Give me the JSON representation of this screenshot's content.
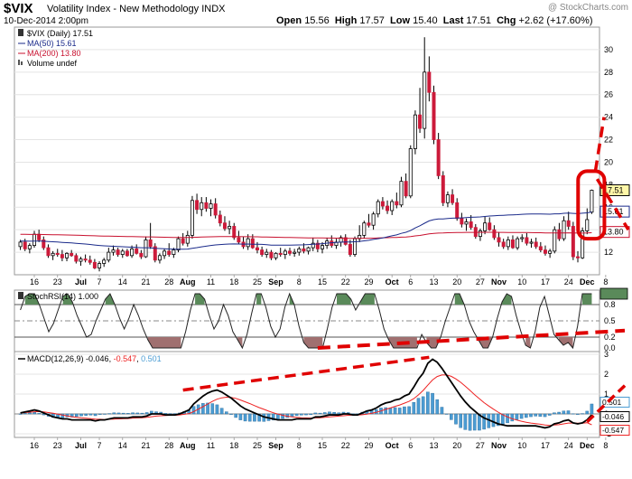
{
  "header": {
    "symbol": "$VIX",
    "description": "Volatility Index - New Methodology",
    "exchange": "INDX",
    "datestamp": "10-Dec-2014 2:00pm",
    "watermark": "@ StockCharts.com",
    "open_label": "Open",
    "open": "15.56",
    "high_label": "High",
    "high": "17.57",
    "low_label": "Low",
    "low": "15.40",
    "last_label": "Last",
    "last": "17.51",
    "chg_label": "Chg",
    "chg": "+2.62 (+17.60%)"
  },
  "legend": {
    "price": "$VIX (Daily) 17.51",
    "ma50": "MA(50) 15.61",
    "ma200": "MA(200) 13.80",
    "volume": "Volume undef",
    "stochrsi": "StochRSI(14) 1.000",
    "macd_prefix": "MACD(12,26,9)",
    "macd_val": "-0.046",
    "signal_val": "-0.547",
    "hist_val": "0.501"
  },
  "colors": {
    "up": "#ffffff",
    "down": "#cc1a3a",
    "ma50": "#1a2a8a",
    "ma200": "#c8102e",
    "macd_line": "#000000",
    "signal_line": "#ee2222",
    "hist": "#4b9cd3",
    "stoch_fill_high": "#5a8a5a",
    "stoch_fill_low": "#a07070",
    "annotation": "#e00000"
  },
  "chart_data": [
    {
      "type": "candlestick",
      "name": "price",
      "ylim": [
        10,
        32
      ],
      "yticks": [
        12,
        14,
        16,
        18,
        20,
        22,
        24,
        26,
        28,
        30
      ],
      "ma50_last": "15.61",
      "ma200_last": "13.80",
      "price_last": "17.51",
      "ohlc": [
        [
          12.5,
          13.1,
          12.2,
          12.9
        ],
        [
          12.9,
          13.2,
          12.1,
          12.3
        ],
        [
          12.3,
          12.8,
          11.9,
          12.6
        ],
        [
          12.6,
          13.9,
          12.4,
          13.6
        ],
        [
          13.6,
          14.0,
          12.9,
          13.1
        ],
        [
          13.1,
          13.4,
          12.2,
          12.4
        ],
        [
          12.4,
          12.7,
          11.5,
          11.7
        ],
        [
          11.7,
          12.1,
          11.3,
          11.9
        ],
        [
          11.9,
          12.3,
          11.6,
          11.8
        ],
        [
          11.8,
          12.2,
          11.2,
          11.5
        ],
        [
          11.5,
          12.0,
          11.2,
          11.9
        ],
        [
          11.9,
          12.2,
          11.6,
          11.7
        ],
        [
          11.7,
          11.9,
          11.0,
          11.2
        ],
        [
          11.2,
          11.6,
          10.8,
          11.4
        ],
        [
          11.4,
          11.8,
          11.1,
          11.3
        ],
        [
          11.3,
          11.7,
          10.9,
          11.1
        ],
        [
          11.1,
          11.4,
          10.5,
          10.6
        ],
        [
          10.6,
          11.2,
          10.3,
          11.0
        ],
        [
          11.0,
          11.5,
          10.7,
          11.3
        ],
        [
          11.3,
          12.4,
          11.1,
          12.0
        ],
        [
          12.0,
          12.6,
          11.7,
          12.2
        ],
        [
          12.2,
          12.4,
          11.6,
          11.8
        ],
        [
          11.8,
          12.3,
          11.5,
          12.1
        ],
        [
          12.1,
          12.3,
          11.6,
          11.7
        ],
        [
          11.7,
          12.6,
          11.5,
          12.3
        ],
        [
          12.3,
          12.7,
          11.8,
          11.9
        ],
        [
          11.9,
          12.2,
          11.4,
          11.6
        ],
        [
          11.6,
          13.4,
          11.5,
          13.1
        ],
        [
          13.1,
          14.6,
          12.3,
          12.5
        ],
        [
          12.5,
          12.8,
          11.1,
          11.3
        ],
        [
          11.3,
          11.9,
          11.0,
          11.7
        ],
        [
          11.7,
          12.3,
          11.4,
          12.1
        ],
        [
          12.1,
          12.8,
          11.6,
          11.8
        ],
        [
          11.8,
          12.4,
          11.5,
          12.2
        ],
        [
          12.2,
          13.4,
          12.0,
          13.2
        ],
        [
          13.2,
          13.7,
          12.6,
          12.8
        ],
        [
          12.8,
          13.9,
          12.5,
          13.5
        ],
        [
          13.5,
          17.0,
          13.2,
          16.6
        ],
        [
          16.6,
          17.2,
          15.4,
          15.8
        ],
        [
          15.8,
          16.9,
          15.2,
          16.4
        ],
        [
          16.4,
          16.9,
          15.6,
          15.9
        ],
        [
          15.9,
          16.7,
          15.2,
          16.3
        ],
        [
          16.3,
          16.8,
          15.0,
          15.3
        ],
        [
          15.3,
          15.7,
          14.3,
          14.6
        ],
        [
          14.6,
          15.2,
          13.9,
          14.1
        ],
        [
          14.1,
          14.8,
          13.6,
          14.3
        ],
        [
          14.3,
          14.6,
          13.1,
          13.3
        ],
        [
          13.3,
          13.9,
          12.7,
          12.9
        ],
        [
          12.9,
          13.4,
          12.3,
          12.5
        ],
        [
          12.5,
          13.6,
          12.2,
          13.2
        ],
        [
          13.2,
          13.6,
          12.3,
          12.4
        ],
        [
          12.4,
          12.9,
          11.9,
          12.2
        ],
        [
          12.2,
          12.5,
          11.6,
          11.8
        ],
        [
          11.8,
          12.3,
          11.5,
          12.0
        ],
        [
          12.0,
          12.2,
          11.3,
          11.5
        ],
        [
          11.5,
          12.0,
          11.3,
          11.9
        ],
        [
          11.9,
          12.4,
          11.6,
          11.8
        ],
        [
          11.8,
          12.3,
          11.4,
          12.1
        ],
        [
          12.1,
          12.4,
          11.7,
          11.9
        ],
        [
          11.9,
          12.3,
          11.6,
          12.0
        ],
        [
          12.0,
          12.5,
          11.7,
          12.3
        ],
        [
          12.3,
          12.8,
          11.9,
          12.1
        ],
        [
          12.1,
          12.5,
          11.8,
          12.4
        ],
        [
          12.4,
          13.3,
          12.1,
          12.8
        ],
        [
          12.8,
          13.1,
          12.0,
          12.3
        ],
        [
          12.3,
          12.9,
          11.9,
          12.6
        ],
        [
          12.6,
          13.3,
          12.3,
          13.0
        ],
        [
          13.0,
          13.5,
          12.4,
          12.6
        ],
        [
          12.6,
          13.2,
          12.3,
          12.9
        ],
        [
          12.9,
          13.5,
          12.5,
          13.3
        ],
        [
          13.3,
          13.6,
          12.6,
          12.7
        ],
        [
          12.7,
          13.1,
          11.6,
          11.8
        ],
        [
          11.8,
          13.4,
          11.6,
          13.2
        ],
        [
          13.2,
          14.4,
          12.9,
          13.5
        ],
        [
          13.5,
          14.8,
          13.2,
          14.6
        ],
        [
          14.6,
          15.4,
          14.2,
          14.4
        ],
        [
          14.4,
          15.6,
          14.0,
          15.4
        ],
        [
          15.4,
          16.7,
          15.1,
          16.5
        ],
        [
          16.5,
          16.9,
          15.8,
          16.1
        ],
        [
          16.1,
          16.6,
          15.4,
          15.7
        ],
        [
          15.7,
          16.7,
          15.3,
          16.5
        ],
        [
          16.5,
          17.3,
          15.9,
          16.2
        ],
        [
          16.2,
          18.7,
          16.0,
          18.3
        ],
        [
          18.3,
          19.0,
          16.8,
          17.0
        ],
        [
          17.0,
          21.5,
          16.8,
          21.2
        ],
        [
          21.2,
          24.6,
          20.7,
          24.2
        ],
        [
          24.2,
          26.6,
          22.6,
          23.0
        ],
        [
          23.0,
          31.1,
          22.1,
          28.0
        ],
        [
          28.0,
          29.4,
          25.4,
          26.2
        ],
        [
          26.2,
          26.8,
          21.6,
          22.0
        ],
        [
          22.0,
          22.6,
          18.5,
          18.8
        ],
        [
          18.8,
          19.2,
          16.1,
          16.4
        ],
        [
          16.4,
          17.4,
          16.0,
          17.1
        ],
        [
          17.1,
          17.6,
          16.2,
          16.4
        ],
        [
          16.4,
          16.8,
          14.8,
          15.0
        ],
        [
          15.0,
          15.5,
          14.2,
          14.5
        ],
        [
          14.5,
          15.0,
          13.9,
          14.7
        ],
        [
          14.7,
          15.3,
          14.0,
          14.2
        ],
        [
          14.2,
          14.5,
          13.2,
          13.4
        ],
        [
          13.4,
          14.1,
          13.0,
          13.9
        ],
        [
          13.9,
          15.2,
          13.6,
          14.6
        ],
        [
          14.6,
          15.1,
          13.9,
          14.0
        ],
        [
          14.0,
          14.4,
          13.1,
          13.3
        ],
        [
          13.3,
          13.8,
          12.5,
          12.9
        ],
        [
          12.9,
          13.2,
          12.3,
          12.5
        ],
        [
          12.5,
          13.4,
          12.2,
          13.1
        ],
        [
          13.1,
          13.5,
          12.3,
          12.4
        ],
        [
          12.4,
          13.4,
          12.2,
          13.2
        ],
        [
          13.2,
          13.6,
          12.9,
          13.3
        ],
        [
          13.3,
          13.7,
          12.6,
          12.8
        ],
        [
          12.8,
          13.2,
          12.4,
          12.9
        ],
        [
          12.9,
          13.3,
          12.3,
          12.5
        ],
        [
          12.5,
          12.9,
          12.0,
          12.2
        ],
        [
          12.2,
          12.6,
          11.7,
          11.9
        ],
        [
          11.9,
          12.3,
          11.5,
          12.1
        ],
        [
          12.1,
          14.3,
          11.9,
          14.0
        ],
        [
          14.0,
          14.6,
          13.0,
          13.2
        ],
        [
          13.2,
          15.2,
          13.0,
          14.8
        ],
        [
          14.8,
          15.6,
          14.0,
          14.3
        ],
        [
          14.3,
          14.7,
          11.3,
          11.6
        ],
        [
          11.6,
          12.1,
          11.1,
          11.5
        ],
        [
          11.5,
          14.2,
          11.4,
          13.9
        ],
        [
          13.9,
          15.9,
          13.6,
          14.9
        ],
        [
          15.56,
          17.57,
          15.4,
          17.51
        ]
      ],
      "annotations": [
        {
          "type": "ellipse",
          "label": "highlighted last two candles"
        },
        {
          "type": "dashed-projection",
          "to_value": 24
        },
        {
          "type": "dashed-projection",
          "to_value": 14
        }
      ]
    },
    {
      "type": "line",
      "name": "stochrsi",
      "ylim": [
        0,
        1
      ],
      "yticks": [
        0,
        0.2,
        0.5,
        0.8,
        1.0
      ],
      "ytick_labels": [
        "0.0",
        "0.2",
        "0.5",
        "0.8",
        "1.000"
      ],
      "overbought": 0.8,
      "oversold": 0.2,
      "values": [
        0.7,
        0.95,
        1,
        1,
        0.8,
        0.55,
        0.3,
        0.45,
        0.7,
        0.95,
        1,
        0.85,
        0.6,
        0.4,
        0.2,
        0.25,
        0.5,
        0.7,
        0.9,
        1,
        0.8,
        0.55,
        0.35,
        0.55,
        0.8,
        0.6,
        0.35,
        0.15,
        0,
        0,
        0,
        0,
        0,
        0,
        0,
        0.3,
        0.7,
        1,
        1,
        0.9,
        0.6,
        0.35,
        0.5,
        0.8,
        0.6,
        0.3,
        0.15,
        0,
        0.25,
        0.65,
        1,
        1,
        0.75,
        0.4,
        0.2,
        0.35,
        0.75,
        1,
        0.8,
        0.4,
        0.1,
        0,
        0,
        0,
        0,
        0.35,
        0.75,
        1,
        1,
        1,
        0.9,
        0.7,
        0.85,
        1,
        1,
        1,
        0.7,
        0.35,
        0.15,
        0,
        0,
        0,
        0,
        0,
        0,
        0.25,
        0.1,
        0,
        0,
        0.2,
        0.5,
        0.75,
        1,
        1,
        0.8,
        0.5,
        0.3,
        0.15,
        0,
        0,
        0.2,
        0.55,
        0.85,
        1,
        0.95,
        0.6,
        0.3,
        0.05,
        0,
        0.3,
        0.75,
        0.95,
        0.6,
        0.25,
        0.15,
        0.05,
        0.1,
        0,
        0.4,
        1,
        1,
        1
      ]
    },
    {
      "type": "line+histogram",
      "name": "macd",
      "ylim": [
        -1,
        3
      ],
      "yticks": [
        -1,
        0,
        1,
        2,
        3
      ],
      "annotation_labels": [
        "0.501",
        "-0.046",
        "-0.547"
      ],
      "macd": [
        0.05,
        0.1,
        0.15,
        0.2,
        0.15,
        0.05,
        -0.05,
        -0.15,
        -0.2,
        -0.25,
        -0.25,
        -0.3,
        -0.3,
        -0.3,
        -0.3,
        -0.3,
        -0.35,
        -0.3,
        -0.3,
        -0.25,
        -0.2,
        -0.2,
        -0.2,
        -0.2,
        -0.15,
        -0.15,
        -0.15,
        -0.1,
        0,
        0,
        0,
        -0.05,
        -0.05,
        -0.05,
        0,
        0.1,
        0.2,
        0.5,
        0.7,
        0.9,
        1.05,
        1.15,
        1.2,
        1.1,
        0.95,
        0.8,
        0.6,
        0.4,
        0.25,
        0.15,
        0.05,
        -0.05,
        -0.15,
        -0.2,
        -0.25,
        -0.3,
        -0.3,
        -0.3,
        -0.3,
        -0.25,
        -0.25,
        -0.25,
        -0.25,
        -0.15,
        -0.15,
        -0.1,
        -0.05,
        -0.05,
        -0.05,
        0,
        0,
        -0.05,
        -0.05,
        0.05,
        0.15,
        0.2,
        0.3,
        0.45,
        0.55,
        0.6,
        0.7,
        0.75,
        0.9,
        1.0,
        1.35,
        1.75,
        2.05,
        2.55,
        2.75,
        2.6,
        2.3,
        1.95,
        1.6,
        1.25,
        0.9,
        0.6,
        0.35,
        0.15,
        -0.05,
        -0.2,
        -0.3,
        -0.4,
        -0.5,
        -0.55,
        -0.6,
        -0.6,
        -0.6,
        -0.6,
        -0.6,
        -0.6,
        -0.6,
        -0.65,
        -0.7,
        -0.65,
        -0.5,
        -0.45,
        -0.35,
        -0.3,
        -0.45,
        -0.5,
        -0.45,
        -0.3,
        -0.046
      ],
      "signal": [
        0.05,
        0.07,
        0.09,
        0.11,
        0.12,
        0.1,
        0.07,
        0.03,
        -0.01,
        -0.06,
        -0.1,
        -0.14,
        -0.17,
        -0.2,
        -0.22,
        -0.24,
        -0.26,
        -0.27,
        -0.28,
        -0.27,
        -0.26,
        -0.25,
        -0.24,
        -0.23,
        -0.21,
        -0.2,
        -0.19,
        -0.17,
        -0.14,
        -0.11,
        -0.09,
        -0.08,
        -0.07,
        -0.07,
        -0.05,
        -0.02,
        0.02,
        0.12,
        0.24,
        0.37,
        0.5,
        0.63,
        0.74,
        0.81,
        0.84,
        0.83,
        0.78,
        0.7,
        0.61,
        0.52,
        0.42,
        0.32,
        0.23,
        0.14,
        0.06,
        -0.01,
        -0.07,
        -0.12,
        -0.15,
        -0.17,
        -0.19,
        -0.2,
        -0.21,
        -0.2,
        -0.19,
        -0.17,
        -0.15,
        -0.13,
        -0.11,
        -0.09,
        -0.07,
        -0.06,
        -0.06,
        -0.04,
        -0.01,
        0.03,
        0.08,
        0.15,
        0.23,
        0.3,
        0.38,
        0.45,
        0.54,
        0.63,
        0.77,
        0.96,
        1.18,
        1.45,
        1.71,
        1.88,
        1.96,
        1.96,
        1.89,
        1.76,
        1.59,
        1.39,
        1.18,
        0.97,
        0.77,
        0.57,
        0.4,
        0.24,
        0.09,
        -0.04,
        -0.15,
        -0.24,
        -0.31,
        -0.37,
        -0.42,
        -0.46,
        -0.49,
        -0.52,
        -0.56,
        -0.58,
        -0.56,
        -0.54,
        -0.5,
        -0.46,
        -0.46,
        -0.47,
        -0.47,
        -0.44,
        -0.547
      ]
    }
  ],
  "xaxis": {
    "labels": [
      {
        "i": 3,
        "t": "16"
      },
      {
        "i": 8,
        "t": "23"
      },
      {
        "i": 13,
        "t": "Jul"
      },
      {
        "i": 17,
        "t": "7"
      },
      {
        "i": 22,
        "t": "14"
      },
      {
        "i": 27,
        "t": "21"
      },
      {
        "i": 32,
        "t": "28"
      },
      {
        "i": 36,
        "t": "Aug"
      },
      {
        "i": 41,
        "t": "11"
      },
      {
        "i": 46,
        "t": "18"
      },
      {
        "i": 51,
        "t": "25"
      },
      {
        "i": 55,
        "t": "Sep"
      },
      {
        "i": 60,
        "t": "8"
      },
      {
        "i": 65,
        "t": "15"
      },
      {
        "i": 70,
        "t": "22"
      },
      {
        "i": 75,
        "t": "29"
      },
      {
        "i": 80,
        "t": "Oct"
      },
      {
        "i": 84,
        "t": "6"
      },
      {
        "i": 89,
        "t": "13"
      },
      {
        "i": 94,
        "t": "20"
      },
      {
        "i": 99,
        "t": "27"
      },
      {
        "i": 103,
        "t": "Nov"
      },
      {
        "i": 108,
        "t": "10"
      },
      {
        "i": 113,
        "t": "17"
      },
      {
        "i": 118,
        "t": "24"
      },
      {
        "i": 122,
        "t": "Dec"
      },
      {
        "i": 126,
        "t": "8"
      }
    ]
  }
}
